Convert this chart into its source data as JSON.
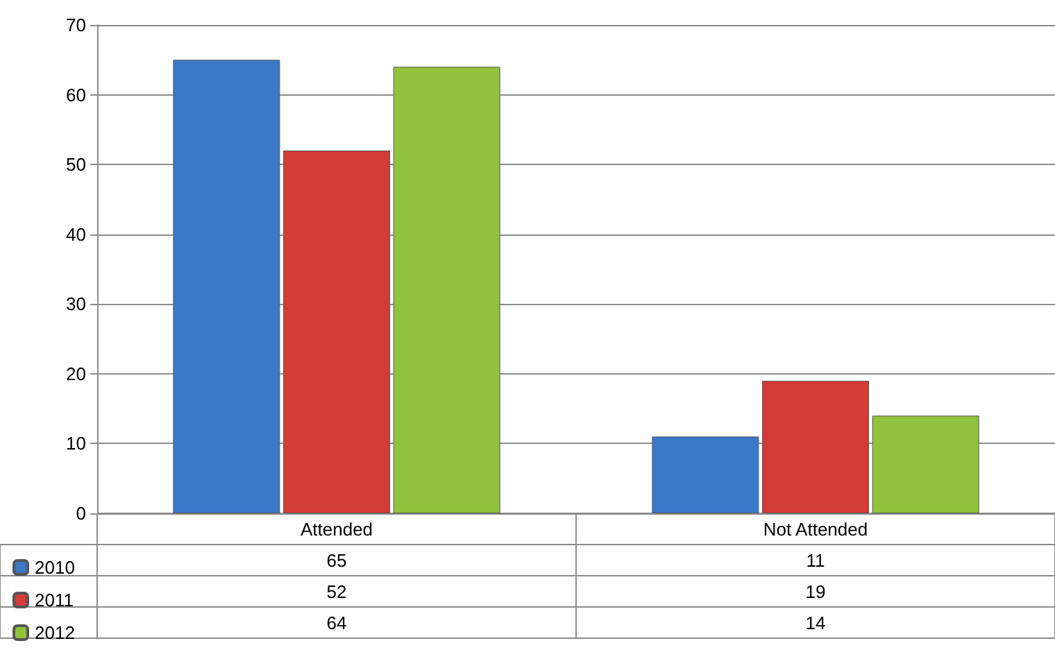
{
  "chart_data": {
    "type": "bar",
    "categories": [
      "Attended",
      "Not Attended"
    ],
    "series": [
      {
        "name": "2010",
        "color": "#3b78c8",
        "values": [
          65,
          11
        ]
      },
      {
        "name": "2011",
        "color": "#d33b37",
        "values": [
          52,
          19
        ]
      },
      {
        "name": "2012",
        "color": "#90c23c",
        "values": [
          64,
          14
        ]
      }
    ],
    "ylim": [
      0,
      70
    ],
    "yticks": [
      0,
      10,
      20,
      30,
      40,
      50,
      60,
      70
    ],
    "grid": "y",
    "legend": "bottom left",
    "data_labels": true
  }
}
